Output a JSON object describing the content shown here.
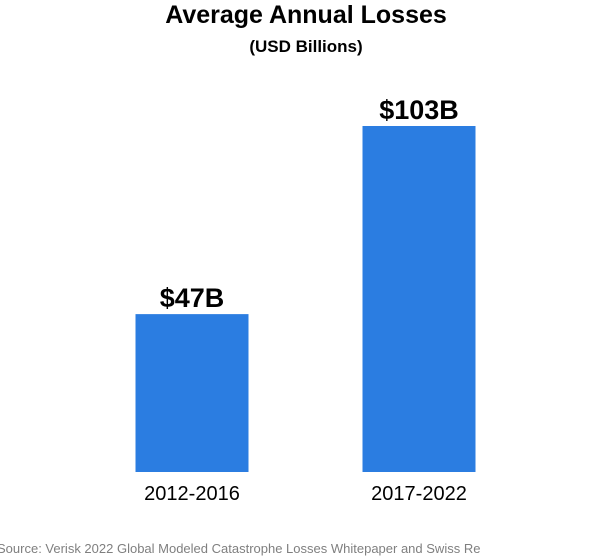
{
  "chart_data": {
    "type": "bar",
    "title": "Average Annual Losses",
    "subtitle": "(USD Billions)",
    "categories": [
      "2012-2016",
      "2017-2022"
    ],
    "values": [
      47,
      103
    ],
    "data_labels": [
      "$47B",
      "$103B"
    ],
    "xlabel": "",
    "ylabel": "",
    "ylim": [
      0,
      103
    ],
    "grid": false,
    "legend": "none",
    "bar_color": "#2b7de1"
  },
  "source": "Source: Verisk 2022 Global  Modeled Catastrophe Losses Whitepaper and Swiss Re"
}
